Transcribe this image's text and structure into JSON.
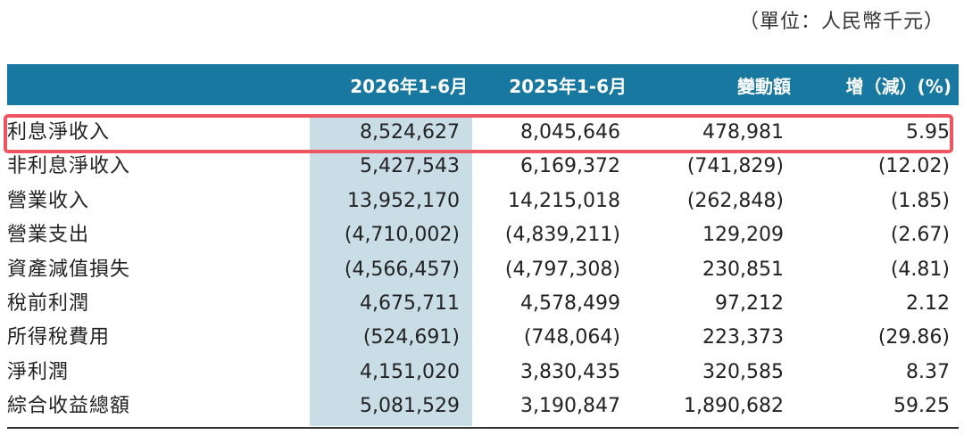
{
  "unit_note": "（單位：人民幣千元）",
  "header": {
    "col_2026": "2026年1-6月",
    "col_2025": "2025年1-6月",
    "col_change": "變動額",
    "col_pct": "增（減）(%)"
  },
  "rows": [
    {
      "label": "利息淨收入",
      "v2026": "8,524,627",
      "v2025": "8,045,646",
      "change": "478,981",
      "pct": "5.95"
    },
    {
      "label": "非利息淨收入",
      "v2026": "5,427,543",
      "v2025": "6,169,372",
      "change": "(741,829)",
      "pct": "(12.02)"
    },
    {
      "label": "營業收入",
      "v2026": "13,952,170",
      "v2025": "14,215,018",
      "change": "(262,848)",
      "pct": "(1.85)"
    },
    {
      "label": "營業支出",
      "v2026": "(4,710,002)",
      "v2025": "(4,839,211)",
      "change": "129,209",
      "pct": "(2.67)"
    },
    {
      "label": "資產減值損失",
      "v2026": "(4,566,457)",
      "v2025": "(4,797,308)",
      "change": "230,851",
      "pct": "(4.81)"
    },
    {
      "label": "稅前利潤",
      "v2026": "4,675,711",
      "v2025": "4,578,499",
      "change": "97,212",
      "pct": "2.12"
    },
    {
      "label": "所得稅費用",
      "v2026": "(524,691)",
      "v2025": "(748,064)",
      "change": "223,373",
      "pct": "(29.86)"
    },
    {
      "label": "淨利潤",
      "v2026": "4,151,020",
      "v2025": "3,830,435",
      "change": "320,585",
      "pct": "8.37"
    },
    {
      "label": "綜合收益總額",
      "v2026": "5,081,529",
      "v2025": "3,190,847",
      "change": "1,890,682",
      "pct": "59.25"
    }
  ],
  "colors": {
    "header_bg": "#1878a0",
    "column_shade": "#c9dde7",
    "highlight_border": "#ee5560"
  }
}
